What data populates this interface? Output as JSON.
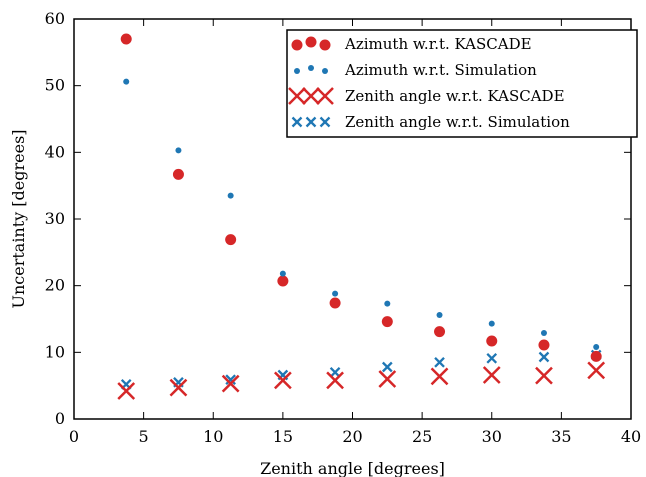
{
  "chart_data": {
    "type": "scatter",
    "title": "",
    "xlabel": "Zenith angle [degrees]",
    "ylabel": "Uncertainty [degrees]",
    "xlim": [
      0,
      40
    ],
    "ylim": [
      0,
      60
    ],
    "xticks": [
      0,
      5,
      10,
      15,
      20,
      25,
      30,
      35,
      40
    ],
    "yticks": [
      0,
      10,
      20,
      30,
      40,
      50,
      60
    ],
    "grid": false,
    "legend_position": "top-right",
    "x": [
      3.75,
      7.5,
      11.25,
      15.0,
      18.75,
      22.5,
      26.25,
      30.0,
      33.75,
      37.5
    ],
    "series": [
      {
        "name": "Azimuth w.r.t. KASCADE",
        "marker": "circle-large",
        "color": "#d62728",
        "values": [
          57.0,
          36.7,
          26.9,
          20.7,
          17.4,
          14.6,
          13.1,
          11.7,
          11.1,
          9.4
        ]
      },
      {
        "name": "Azimuth w.r.t. Simulation",
        "marker": "circle-small",
        "color": "#1f77b4",
        "values": [
          50.6,
          40.3,
          33.5,
          21.8,
          18.8,
          17.3,
          15.6,
          14.3,
          12.9,
          10.8
        ]
      },
      {
        "name": "Zenith angle w.r.t. KASCADE",
        "marker": "x-large",
        "color": "#d62728",
        "values": [
          4.2,
          4.7,
          5.3,
          5.8,
          5.8,
          6.0,
          6.4,
          6.6,
          6.5,
          7.3
        ]
      },
      {
        "name": "Zenith angle w.r.t. Simulation",
        "marker": "x-small",
        "color": "#1f77b4",
        "values": [
          5.2,
          5.5,
          5.9,
          6.6,
          7.0,
          7.8,
          8.5,
          9.1,
          9.3,
          9.6
        ]
      }
    ]
  }
}
